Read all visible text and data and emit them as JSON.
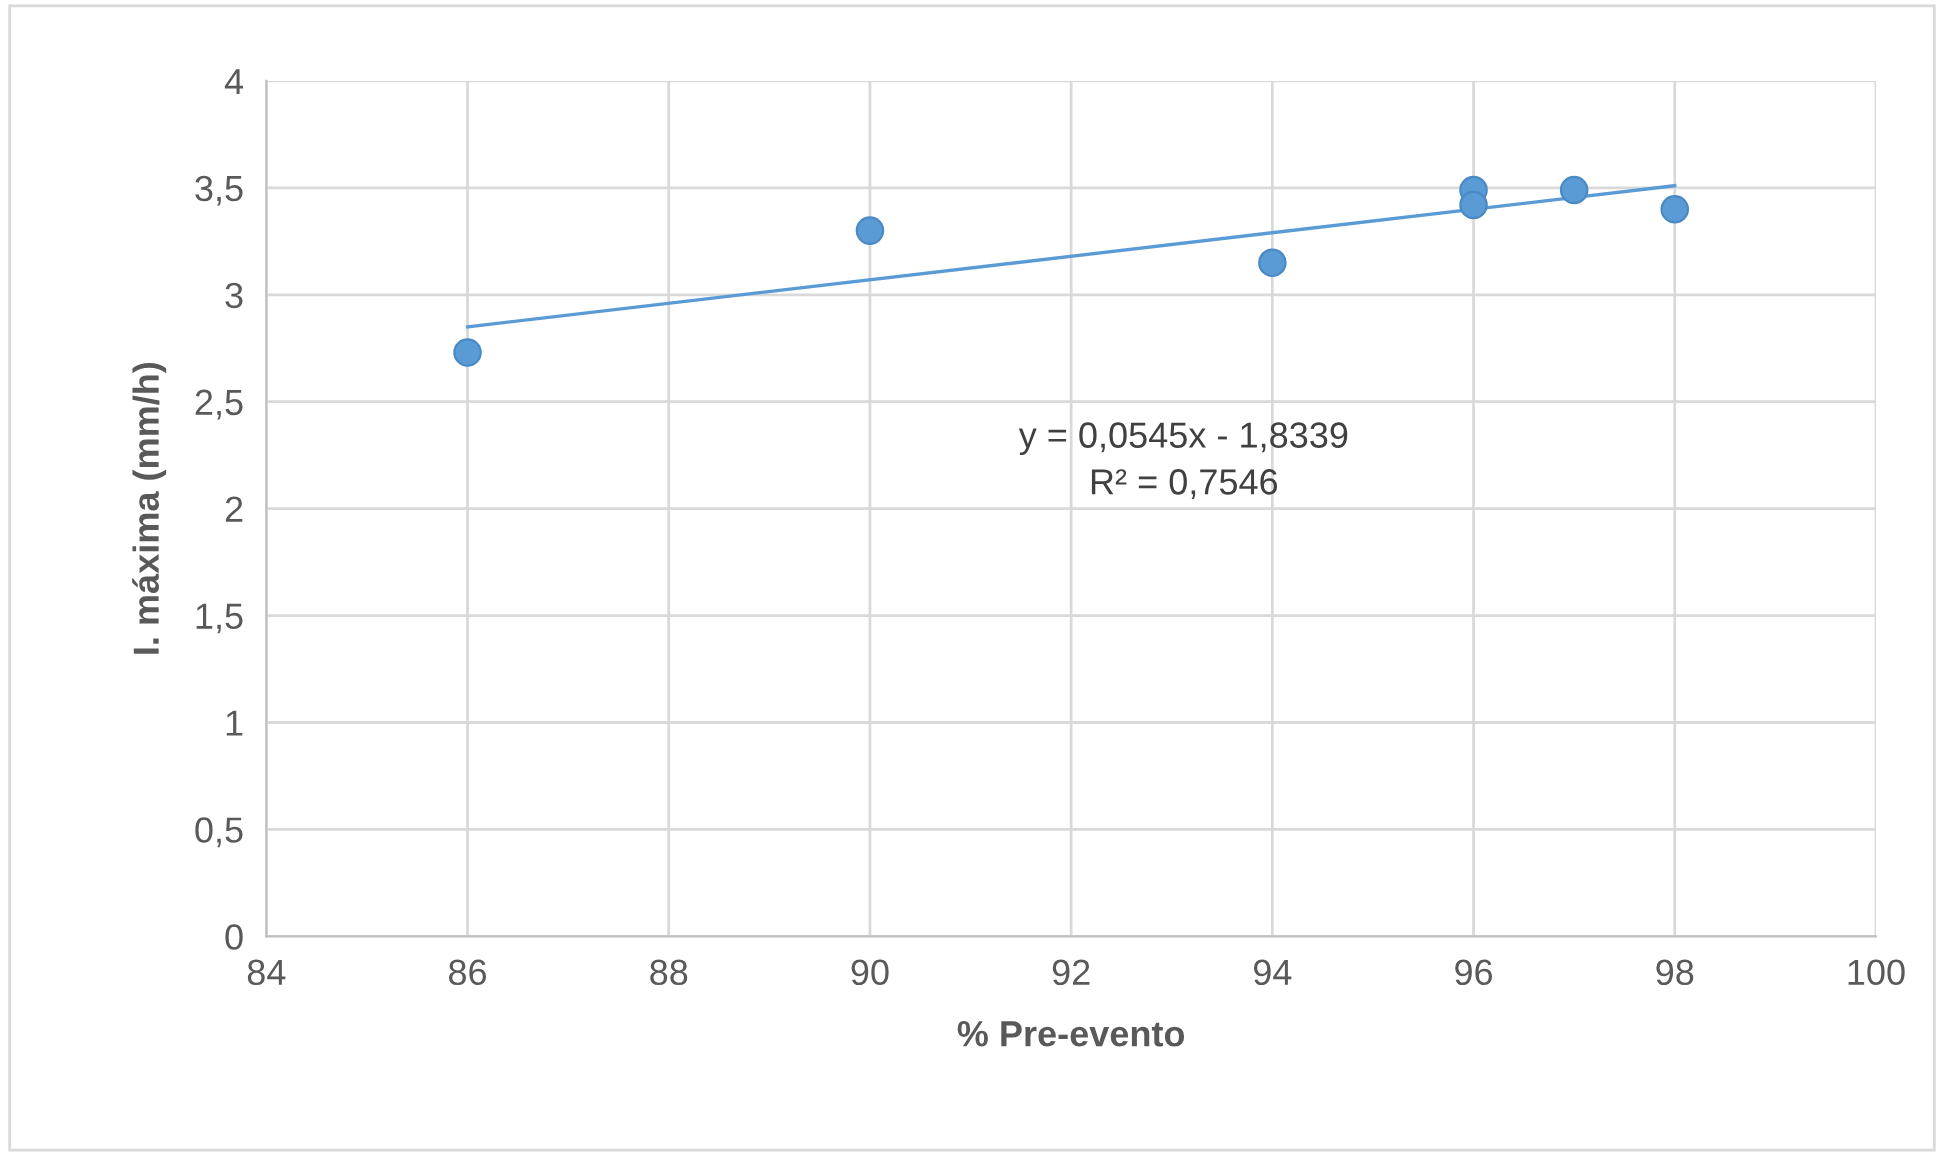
{
  "chart_data": {
    "type": "scatter",
    "xlabel": "% Pre-evento",
    "ylabel": "I. máxima (mm/h)",
    "series": [
      {
        "color": "#5b9bd5",
        "x": [
          86,
          90,
          94,
          96,
          96,
          97,
          98
        ],
        "values": [
          2.73,
          3.3,
          3.15,
          3.49,
          3.42,
          3.49,
          3.4
        ]
      },
      {
        "type": "line",
        "marker": "none",
        "color": "#5b9bd5",
        "x": [
          86,
          98
        ],
        "values": [
          2.85,
          3.51
        ]
      }
    ],
    "xlim": [
      84,
      100
    ],
    "xticks": [
      84,
      86,
      88,
      90,
      92,
      94,
      96,
      98,
      100
    ],
    "ylim": [
      0,
      4
    ],
    "yticks": [
      0,
      {
        "value": 0.5,
        "label": "0,5"
      },
      1,
      {
        "value": 1.5,
        "label": "1,5"
      },
      2,
      {
        "value": 2.5,
        "label": "2,5"
      },
      3,
      {
        "value": 3.5,
        "label": "3,5"
      },
      4
    ],
    "grid": true,
    "marker": "circle",
    "annotations": [
      "y = 0,0545x - 1,8339",
      "R² = 0,7546"
    ]
  }
}
